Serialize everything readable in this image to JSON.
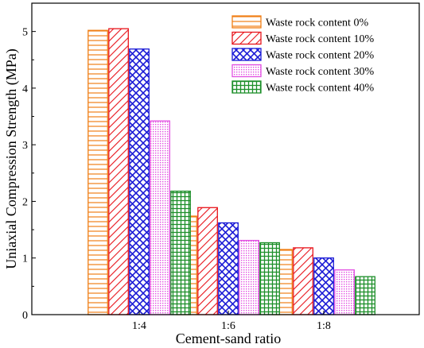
{
  "chart_data": {
    "type": "bar",
    "xlabel": "Cement-sand ratio",
    "ylabel": "Uniaxial Compression Strength (MPa)",
    "categories": [
      "1:4",
      "1:6",
      "1:8"
    ],
    "ylim": [
      0,
      5.5
    ],
    "yticks": [
      0,
      1,
      2,
      3,
      4,
      5
    ],
    "grid": false,
    "legend_position": "top-right",
    "series": [
      {
        "name": "Waste rock content 0%",
        "color": "#f07f16",
        "pattern": "horizontal-lines",
        "values": [
          5.02,
          1.74,
          1.15
        ]
      },
      {
        "name": "Waste rock content 10%",
        "color": "#e8141b",
        "pattern": "diagonal-lines",
        "values": [
          5.05,
          1.89,
          1.18
        ]
      },
      {
        "name": "Waste rock content 20%",
        "color": "#1a1ad6",
        "pattern": "crosshatch",
        "values": [
          4.69,
          1.62,
          1.0
        ]
      },
      {
        "name": "Waste rock content 30%",
        "color": "#e24fe2",
        "pattern": "dots",
        "values": [
          3.42,
          1.31,
          0.79
        ]
      },
      {
        "name": "Waste rock content 40%",
        "color": "#1d8f2a",
        "pattern": "grid",
        "values": [
          2.18,
          1.27,
          0.67
        ]
      }
    ]
  }
}
